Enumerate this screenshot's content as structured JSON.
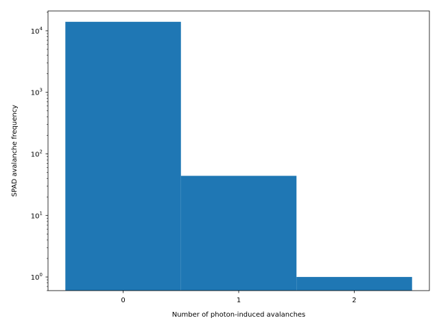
{
  "chart_data": {
    "type": "bar",
    "title": "",
    "xlabel": "Number of photon-induced avalanches",
    "ylabel": "SPAD avalanche frequency",
    "categories": [
      "0",
      "1",
      "2"
    ],
    "x": [
      0,
      1,
      2
    ],
    "values": [
      14000,
      44,
      1
    ],
    "bar_color": "#1f77b4",
    "xlim": [
      -0.65,
      2.65
    ],
    "ylim": [
      0.6,
      21000
    ],
    "yscale": "log",
    "y_ticks": [
      {
        "value": 1,
        "base": "10",
        "exp": "0"
      },
      {
        "value": 10,
        "base": "10",
        "exp": "1"
      },
      {
        "value": 100,
        "base": "10",
        "exp": "2"
      },
      {
        "value": 1000,
        "base": "10",
        "exp": "3"
      },
      {
        "value": 10000,
        "base": "10",
        "exp": "4"
      }
    ],
    "grid": false,
    "legend": "none"
  }
}
